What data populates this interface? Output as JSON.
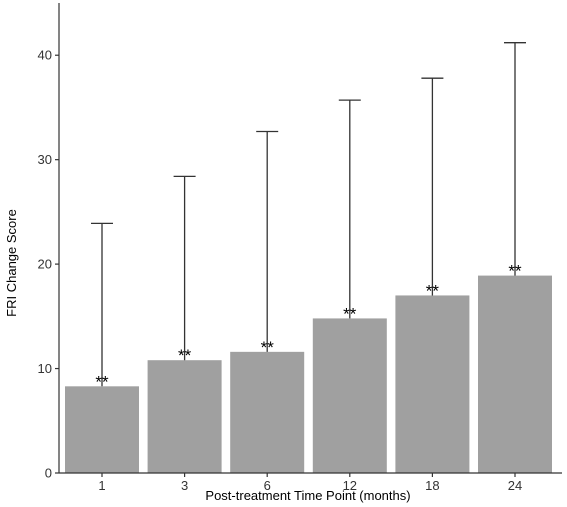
{
  "chart_data": {
    "type": "bar",
    "title": "",
    "xlabel": "Post-treatment Time Point (months)",
    "ylabel": "FRI Change Score",
    "categories": [
      "1",
      "3",
      "6",
      "12",
      "18",
      "24"
    ],
    "values": [
      8.3,
      10.8,
      11.6,
      14.8,
      17.0,
      18.9
    ],
    "error_upper": [
      23.9,
      28.4,
      32.7,
      35.7,
      37.8,
      41.2
    ],
    "annotations": [
      "**",
      "**",
      "**",
      "**",
      "**",
      "**"
    ],
    "ylim": [
      0,
      45
    ],
    "yticks": [
      0,
      10,
      20,
      30,
      40
    ],
    "grid": false,
    "colors": {
      "bar": "#a0a0a0",
      "axis": "#333333",
      "error": "#333333"
    }
  }
}
